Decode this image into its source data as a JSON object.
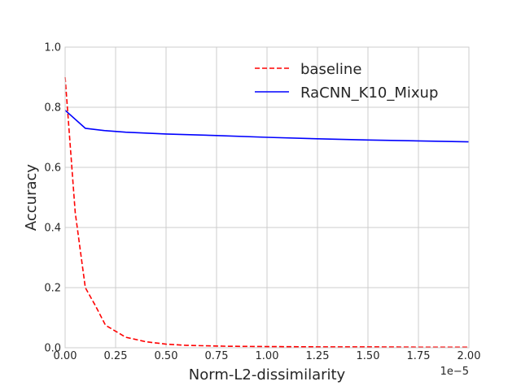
{
  "chart_data": {
    "type": "line",
    "title": "",
    "xlabel": "Norm-L2-dissimilarity",
    "ylabel": "Accuracy",
    "x_offset_label": "1e−5",
    "xlim": [
      0.0,
      2.0
    ],
    "ylim": [
      0.0,
      1.0
    ],
    "xticks": [
      0.0,
      0.25,
      0.5,
      0.75,
      1.0,
      1.25,
      1.5,
      1.75,
      2.0
    ],
    "xtick_labels": [
      "0.00",
      "0.25",
      "0.50",
      "0.75",
      "1.00",
      "1.25",
      "1.50",
      "1.75",
      "2.00"
    ],
    "yticks": [
      0.0,
      0.2,
      0.4,
      0.6,
      0.8,
      1.0
    ],
    "ytick_labels": [
      "0.0",
      "0.2",
      "0.4",
      "0.6",
      "0.8",
      "1.0"
    ],
    "grid": true,
    "legend_position": "top-right",
    "series": [
      {
        "name": "baseline",
        "color": "#ff0000",
        "dash": "dashed",
        "x": [
          0.0,
          0.05,
          0.1,
          0.15,
          0.2,
          0.25,
          0.3,
          0.4,
          0.5,
          0.6,
          0.8,
          1.0,
          1.25,
          1.5,
          1.75,
          2.0
        ],
        "y": [
          0.9,
          0.45,
          0.2,
          0.14,
          0.075,
          0.055,
          0.035,
          0.02,
          0.012,
          0.008,
          0.005,
          0.004,
          0.003,
          0.003,
          0.002,
          0.002
        ]
      },
      {
        "name": "RaCNN_K10_Mixup",
        "color": "#0000ff",
        "dash": "solid",
        "x": [
          0.0,
          0.1,
          0.2,
          0.3,
          0.5,
          0.75,
          1.0,
          1.25,
          1.5,
          1.75,
          2.0
        ],
        "y": [
          0.79,
          0.73,
          0.722,
          0.717,
          0.711,
          0.706,
          0.7,
          0.695,
          0.691,
          0.688,
          0.685
        ]
      }
    ]
  }
}
